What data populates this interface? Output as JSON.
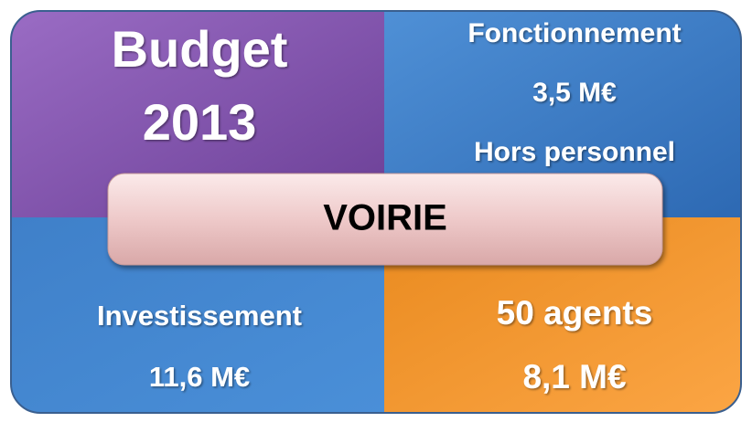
{
  "title_box": {
    "lines": [
      "Budget",
      "2013"
    ]
  },
  "fonctionnement": {
    "lines": [
      "Fonctionnement",
      "3,5 M€",
      "Hors personnel"
    ]
  },
  "investissement": {
    "lines": [
      "Investissement",
      "11,6 M€"
    ]
  },
  "personnel": {
    "lines": [
      "50 agents",
      "8,1 M€"
    ]
  },
  "center": {
    "label": "VOIRIE"
  }
}
